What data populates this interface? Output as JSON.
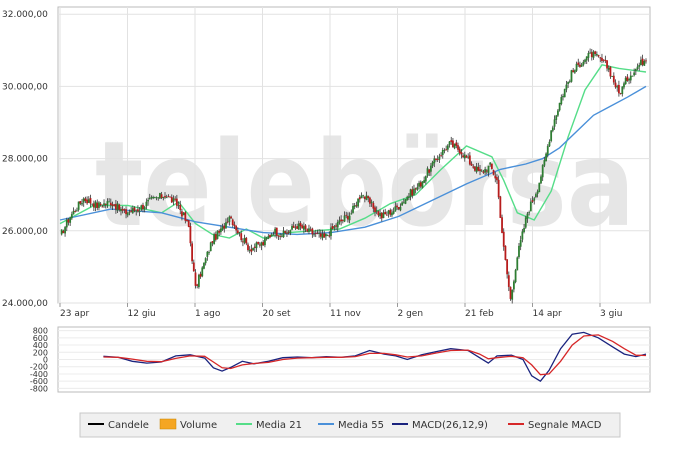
{
  "chart_data": [
    {
      "type": "candlestick",
      "title": "",
      "watermark": "telebörsa",
      "ylim": [
        24000,
        32200
      ],
      "y_ticks": [
        {
          "value": 24000,
          "label": "24.000,00"
        },
        {
          "value": 26000,
          "label": "26.000,00"
        },
        {
          "value": 28000,
          "label": "28.000,00"
        },
        {
          "value": 30000,
          "label": "30.000,00"
        },
        {
          "value": 32000,
          "label": "32.000,00"
        }
      ],
      "x_ticks": [
        "23 apr",
        "12 giu",
        "1 ago",
        "20 set",
        "11 nov",
        "2 gen",
        "21 feb",
        "14 apr",
        "3 giu"
      ],
      "grid": true,
      "series": [
        {
          "name": "Candele",
          "color": "#000000",
          "kind": "candles",
          "close": [
            [
              0,
              25850
            ],
            [
              6,
              26400
            ],
            [
              14,
              26900
            ],
            [
              22,
              26700
            ],
            [
              30,
              26800
            ],
            [
              38,
              26500
            ],
            [
              46,
              26600
            ],
            [
              54,
              26850
            ],
            [
              62,
              27000
            ],
            [
              70,
              26700
            ],
            [
              76,
              26100
            ],
            [
              80,
              24400
            ],
            [
              84,
              24950
            ],
            [
              90,
              25750
            ],
            [
              96,
              26050
            ],
            [
              100,
              26450
            ],
            [
              106,
              25900
            ],
            [
              112,
              25500
            ],
            [
              120,
              25650
            ],
            [
              126,
              26000
            ],
            [
              132,
              25900
            ],
            [
              140,
              26150
            ],
            [
              148,
              25950
            ],
            [
              156,
              25800
            ],
            [
              164,
              26200
            ],
            [
              172,
              26500
            ],
            [
              178,
              27050
            ],
            [
              184,
              26700
            ],
            [
              190,
              26400
            ],
            [
              198,
              26600
            ],
            [
              206,
              27000
            ],
            [
              212,
              27250
            ],
            [
              218,
              27700
            ],
            [
              224,
              28100
            ],
            [
              230,
              28400
            ],
            [
              236,
              28250
            ],
            [
              242,
              27900
            ],
            [
              248,
              27600
            ],
            [
              254,
              27800
            ],
            [
              258,
              27400
            ],
            [
              262,
              25500
            ],
            [
              266,
              24100
            ],
            [
              270,
              25300
            ],
            [
              276,
              26500
            ],
            [
              282,
              27200
            ],
            [
              286,
              27900
            ],
            [
              290,
              28800
            ],
            [
              296,
              29700
            ],
            [
              302,
              30350
            ],
            [
              308,
              30700
            ],
            [
              314,
              30900
            ],
            [
              320,
              30700
            ],
            [
              324,
              30500
            ],
            [
              330,
              29800
            ],
            [
              336,
              30300
            ],
            [
              342,
              30600
            ],
            [
              346,
              30800
            ]
          ]
        },
        {
          "name": "Volume",
          "color": "#f5a623",
          "kind": "volume"
        },
        {
          "name": "Media 21",
          "color": "#55dd88",
          "points": [
            [
              0,
              26200
            ],
            [
              20,
              26700
            ],
            [
              40,
              26700
            ],
            [
              60,
              26500
            ],
            [
              70,
              26800
            ],
            [
              80,
              26200
            ],
            [
              90,
              25900
            ],
            [
              100,
              25800
            ],
            [
              110,
              26050
            ],
            [
              120,
              25800
            ],
            [
              135,
              25950
            ],
            [
              150,
              26000
            ],
            [
              165,
              26050
            ],
            [
              180,
              26350
            ],
            [
              195,
              26750
            ],
            [
              210,
              27000
            ],
            [
              225,
              27700
            ],
            [
              240,
              28350
            ],
            [
              255,
              28050
            ],
            [
              262,
              27400
            ],
            [
              270,
              26500
            ],
            [
              280,
              26300
            ],
            [
              290,
              27100
            ],
            [
              300,
              28600
            ],
            [
              310,
              29900
            ],
            [
              320,
              30600
            ],
            [
              330,
              30500
            ],
            [
              346,
              30400
            ]
          ]
        },
        {
          "name": "Media 55",
          "color": "#4a90d9",
          "points": [
            [
              0,
              26300
            ],
            [
              30,
              26600
            ],
            [
              60,
              26500
            ],
            [
              80,
              26250
            ],
            [
              100,
              26100
            ],
            [
              120,
              25950
            ],
            [
              140,
              25900
            ],
            [
              160,
              25950
            ],
            [
              180,
              26100
            ],
            [
              200,
              26400
            ],
            [
              220,
              26850
            ],
            [
              240,
              27300
            ],
            [
              260,
              27700
            ],
            [
              275,
              27850
            ],
            [
              285,
              28000
            ],
            [
              295,
              28300
            ],
            [
              305,
              28750
            ],
            [
              315,
              29200
            ],
            [
              325,
              29450
            ],
            [
              335,
              29700
            ],
            [
              346,
              30000
            ]
          ]
        }
      ]
    },
    {
      "type": "line",
      "title": "",
      "ylim": [
        -900,
        900
      ],
      "y_ticks": [
        {
          "value": 800,
          "label": "800"
        },
        {
          "value": 600,
          "label": "600"
        },
        {
          "value": 400,
          "label": "400"
        },
        {
          "value": 200,
          "label": "200"
        },
        {
          "value": 0,
          "label": "0"
        },
        {
          "value": -200,
          "label": "-200"
        },
        {
          "value": -400,
          "label": "-400"
        },
        {
          "value": -600,
          "label": "-600"
        },
        {
          "value": -800,
          "label": "-800"
        }
      ],
      "series": [
        {
          "name": "MACD(26,12,9)",
          "color": "#1a237e",
          "points": [
            [
              30,
              90
            ],
            [
              40,
              60
            ],
            [
              50,
              -50
            ],
            [
              60,
              -100
            ],
            [
              70,
              -70
            ],
            [
              80,
              100
            ],
            [
              90,
              130
            ],
            [
              100,
              40
            ],
            [
              106,
              -230
            ],
            [
              112,
              -320
            ],
            [
              118,
              -220
            ],
            [
              126,
              -50
            ],
            [
              134,
              -120
            ],
            [
              144,
              -50
            ],
            [
              154,
              50
            ],
            [
              164,
              70
            ],
            [
              174,
              50
            ],
            [
              184,
              80
            ],
            [
              194,
              60
            ],
            [
              204,
              100
            ],
            [
              214,
              250
            ],
            [
              224,
              150
            ],
            [
              232,
              100
            ],
            [
              240,
              0
            ],
            [
              250,
              130
            ],
            [
              260,
              220
            ],
            [
              270,
              300
            ],
            [
              282,
              250
            ],
            [
              290,
              50
            ],
            [
              296,
              -100
            ],
            [
              302,
              100
            ],
            [
              312,
              120
            ],
            [
              320,
              0
            ],
            [
              326,
              -450
            ],
            [
              332,
              -600
            ],
            [
              338,
              -300
            ],
            [
              346,
              300
            ],
            [
              354,
              700
            ],
            [
              362,
              750
            ],
            [
              372,
              600
            ],
            [
              382,
              350
            ],
            [
              390,
              150
            ],
            [
              398,
              80
            ],
            [
              405,
              150
            ]
          ]
        },
        {
          "name": "Segnale MACD",
          "color": "#d62728",
          "points": [
            [
              30,
              70
            ],
            [
              40,
              60
            ],
            [
              50,
              10
            ],
            [
              60,
              -50
            ],
            [
              70,
              -60
            ],
            [
              80,
              30
            ],
            [
              90,
              100
            ],
            [
              100,
              90
            ],
            [
              106,
              -70
            ],
            [
              112,
              -230
            ],
            [
              118,
              -250
            ],
            [
              126,
              -150
            ],
            [
              134,
              -110
            ],
            [
              144,
              -80
            ],
            [
              154,
              0
            ],
            [
              164,
              40
            ],
            [
              174,
              50
            ],
            [
              184,
              60
            ],
            [
              194,
              60
            ],
            [
              204,
              80
            ],
            [
              214,
              170
            ],
            [
              224,
              170
            ],
            [
              232,
              130
            ],
            [
              240,
              70
            ],
            [
              250,
              100
            ],
            [
              260,
              180
            ],
            [
              270,
              250
            ],
            [
              282,
              260
            ],
            [
              290,
              150
            ],
            [
              296,
              20
            ],
            [
              302,
              50
            ],
            [
              312,
              90
            ],
            [
              320,
              50
            ],
            [
              326,
              -150
            ],
            [
              332,
              -420
            ],
            [
              338,
              -400
            ],
            [
              346,
              -50
            ],
            [
              354,
              400
            ],
            [
              362,
              650
            ],
            [
              372,
              680
            ],
            [
              382,
              500
            ],
            [
              390,
              300
            ],
            [
              398,
              120
            ],
            [
              405,
              110
            ]
          ]
        }
      ]
    }
  ],
  "legend": [
    {
      "label": "Candele",
      "swatch": "line",
      "color": "#000000"
    },
    {
      "label": "Volume",
      "swatch": "box",
      "color": "#f5a623"
    },
    {
      "label": "Media 21",
      "swatch": "line",
      "color": "#55dd88"
    },
    {
      "label": "Media 55",
      "swatch": "line",
      "color": "#4a90d9"
    },
    {
      "label": "MACD(26,12,9)",
      "swatch": "line",
      "color": "#1a237e"
    },
    {
      "label": "Segnale MACD",
      "swatch": "line",
      "color": "#d62728"
    }
  ]
}
